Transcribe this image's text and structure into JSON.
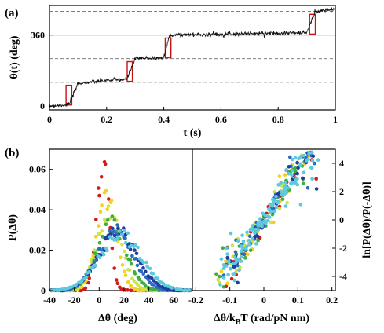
{
  "panel_a": {
    "label": "(a)",
    "ylabel": "θ(t) (deg)",
    "xlabel": "t (s)"
  },
  "panel_b": {
    "label": "(b)",
    "left_ylabel": "P(Δθ)",
    "left_xlabel": "Δθ (deg)",
    "right_xlabel": "Δθ/k",
    "right_xlabel_sub": "B",
    "right_xlabel_tail": "T (rad/pN nm)",
    "right_ylabel": "ln[P(Δθ)/P(-Δθ)]"
  },
  "colors": {
    "trace": "#111111",
    "box": "#cc1111",
    "series": [
      "#d11a1a",
      "#f2d21c",
      "#cfe34a",
      "#3fae3f",
      "#2d68c4",
      "#1e3fa0",
      "#5ec8dc"
    ]
  },
  "chart_data": [
    {
      "type": "line",
      "panel": "a",
      "xlim": [
        0,
        1
      ],
      "ylim": [
        -20,
        510
      ],
      "xticks": [
        0,
        0.2,
        0.4,
        0.6,
        0.8,
        1
      ],
      "yticks": [
        0,
        360
      ],
      "dashed_lines_y": [
        120,
        240,
        480
      ],
      "solid_lines_y": [
        360
      ],
      "series": [
        {
          "x": [
            0,
            0.05,
            0.07,
            0.1,
            0.2,
            0.27,
            0.3,
            0.4,
            0.42,
            0.6,
            0.8,
            0.9,
            0.93,
            1.0
          ],
          "y": [
            0,
            5,
            10,
            115,
            130,
            135,
            240,
            245,
            360,
            365,
            370,
            372,
            480,
            490
          ]
        }
      ],
      "steps": [
        {
          "t0": 0.058,
          "t1": 0.078,
          "y0": 5,
          "y1": 105
        },
        {
          "t0": 0.272,
          "t1": 0.29,
          "y0": 125,
          "y1": 225
        },
        {
          "t0": 0.405,
          "t1": 0.425,
          "y0": 245,
          "y1": 345
        },
        {
          "t0": 0.91,
          "t1": 0.93,
          "y0": 365,
          "y1": 465
        }
      ]
    },
    {
      "type": "scatter",
      "panel": "b-left",
      "xlim": [
        -40,
        75
      ],
      "ylim": [
        0,
        0.07
      ],
      "xticks": [
        -40,
        -20,
        0,
        20,
        40,
        60
      ],
      "yticks": [
        0,
        0.02,
        0.04,
        0.06
      ],
      "series": [
        {
          "center": 3,
          "width": 5,
          "peak": 0.062
        },
        {
          "center": 6,
          "width": 8,
          "peak": 0.045
        },
        {
          "center": 8,
          "width": 10,
          "peak": 0.038
        },
        {
          "center": 10,
          "width": 12,
          "peak": 0.033
        },
        {
          "center": 13,
          "width": 14,
          "peak": 0.03
        },
        {
          "center": 15,
          "width": 15,
          "peak": 0.029
        },
        {
          "center": 17,
          "width": 17,
          "peak": 0.027
        }
      ]
    },
    {
      "type": "scatter",
      "panel": "b-right",
      "xlim": [
        -0.21,
        0.21
      ],
      "ylim": [
        -5,
        5
      ],
      "xticks": [
        -0.2,
        -0.1,
        0,
        0.1,
        0.2
      ],
      "yticks": [
        -4,
        -2,
        0,
        2,
        4
      ],
      "slope": 37
    }
  ]
}
